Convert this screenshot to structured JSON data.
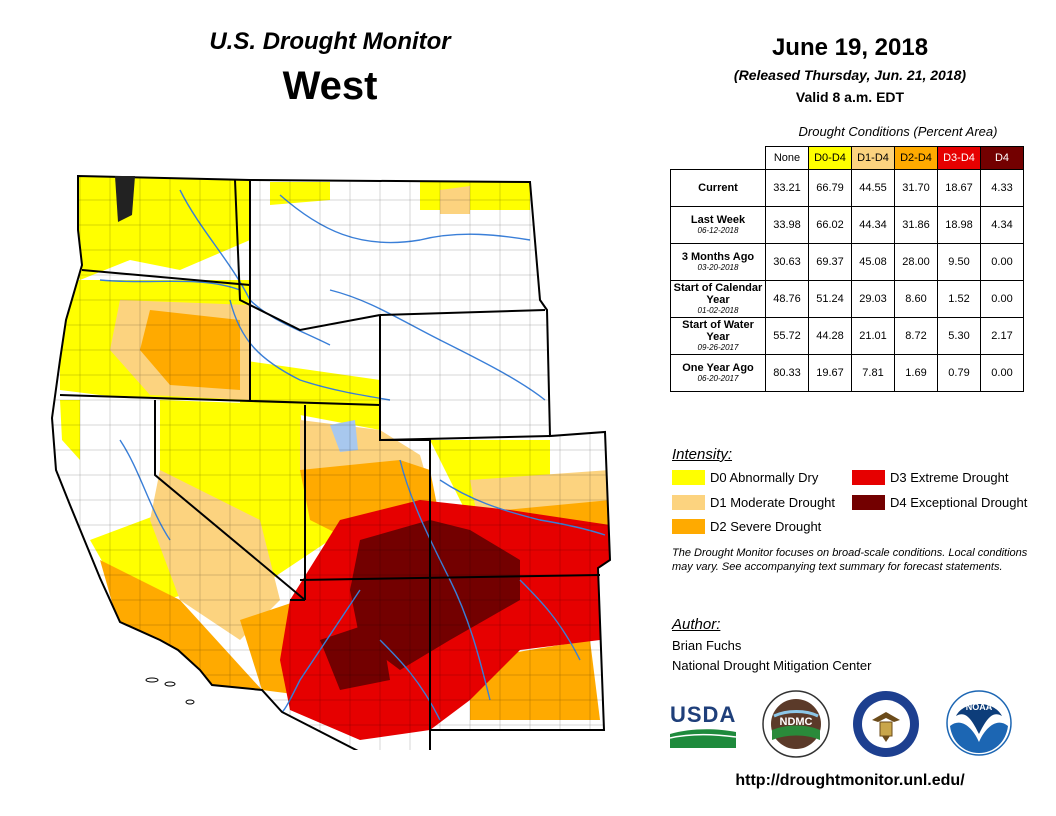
{
  "header": {
    "title": "U.S. Drought Monitor",
    "region": "West",
    "date": "June 19, 2018",
    "released": "(Released Thursday, Jun. 21, 2018)",
    "valid": "Valid 8 a.m. EDT"
  },
  "table": {
    "caption": "Drought Conditions (Percent Area)",
    "columns": [
      {
        "label": "None",
        "color": "#ffffff",
        "text": "#000000"
      },
      {
        "label": "D0-D4",
        "color": "#ffff00",
        "text": "#000000"
      },
      {
        "label": "D1-D4",
        "color": "#fcd37f",
        "text": "#000000"
      },
      {
        "label": "D2-D4",
        "color": "#ffaa00",
        "text": "#000000"
      },
      {
        "label": "D3-D4",
        "color": "#e60000",
        "text": "#ffffff"
      },
      {
        "label": "D4",
        "color": "#730000",
        "text": "#ffffff"
      }
    ],
    "rows": [
      {
        "label": "Current",
        "date": "",
        "values": [
          "33.21",
          "66.79",
          "44.55",
          "31.70",
          "18.67",
          "4.33"
        ]
      },
      {
        "label": "Last Week",
        "date": "06-12-2018",
        "values": [
          "33.98",
          "66.02",
          "44.34",
          "31.86",
          "18.98",
          "4.34"
        ]
      },
      {
        "label": "3 Months Ago",
        "date": "03-20-2018",
        "values": [
          "30.63",
          "69.37",
          "45.08",
          "28.00",
          "9.50",
          "0.00"
        ]
      },
      {
        "label": "Start of Calendar Year",
        "date": "01-02-2018",
        "values": [
          "48.76",
          "51.24",
          "29.03",
          "8.60",
          "1.52",
          "0.00"
        ]
      },
      {
        "label": "Start of Water Year",
        "date": "09-26-2017",
        "values": [
          "55.72",
          "44.28",
          "21.01",
          "8.72",
          "5.30",
          "2.17"
        ]
      },
      {
        "label": "One Year Ago",
        "date": "06-20-2017",
        "values": [
          "80.33",
          "19.67",
          "7.81",
          "1.69",
          "0.79",
          "0.00"
        ]
      }
    ]
  },
  "legend": {
    "heading": "Intensity:",
    "items": [
      {
        "label": "D0 Abnormally Dry",
        "color": "#ffff00"
      },
      {
        "label": "D1 Moderate Drought",
        "color": "#fcd37f"
      },
      {
        "label": "D2 Severe Drought",
        "color": "#ffaa00"
      },
      {
        "label": "D3 Extreme Drought",
        "color": "#e60000"
      },
      {
        "label": "D4 Exceptional Drought",
        "color": "#730000"
      }
    ]
  },
  "note": "The Drought Monitor focuses on broad-scale conditions. Local conditions may vary. See accompanying text summary for forecast statements.",
  "author": {
    "heading": "Author:",
    "name": "Brian Fuchs",
    "org": "National Drought Mitigation Center"
  },
  "logos": {
    "usda": "USDA",
    "ndmc": "NDMC",
    "noaa": "NOAA",
    "commerce_icon": "eagle-seal-icon"
  },
  "url": "http://droughtmonitor.unl.edu/",
  "map_colors": {
    "none": "#ffffff",
    "d0": "#ffff00",
    "d1": "#fcd37f",
    "d2": "#ffaa00",
    "d3": "#e60000",
    "d4": "#730000",
    "rivers": "#3a7fd8",
    "water": "#a8c8ee"
  }
}
